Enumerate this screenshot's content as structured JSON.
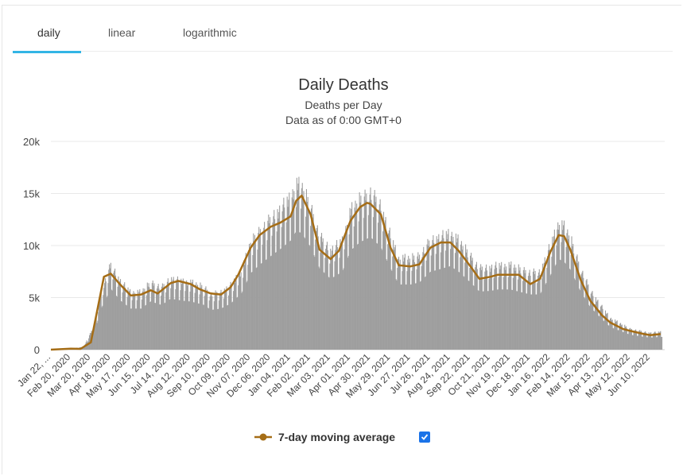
{
  "tabs": [
    {
      "label": "daily",
      "active": true
    },
    {
      "label": "linear",
      "active": false
    },
    {
      "label": "logarithmic",
      "active": false
    }
  ],
  "legend": {
    "label": "7-day moving average",
    "checked": true
  },
  "colors": {
    "accent": "#33b5e5",
    "bars": "#9e9e9e",
    "line": "#a56d16",
    "checkbox": "#1a73e8"
  },
  "chart_data": {
    "type": "bar",
    "title": "Daily Deaths",
    "subtitle": "Deaths per Day",
    "subtitle2": "Data as of 0:00 GMT+0",
    "xlabel": "",
    "ylabel": "",
    "ylim": [
      0,
      20000
    ],
    "y_ticks": [
      0,
      5000,
      10000,
      15000,
      20000
    ],
    "y_tick_labels": [
      "0",
      "5k",
      "10k",
      "15k",
      "20k"
    ],
    "x_tick_labels": [
      "Jan 22, ...",
      "Feb 20, 2020",
      "Mar 20, 2020",
      "Apr 18, 2020",
      "May 17, 2020",
      "Jun 15, 2020",
      "Jul 14, 2020",
      "Aug 12, 2020",
      "Sep 10, 2020",
      "Oct 09, 2020",
      "Nov 07, 2020",
      "Dec 06, 2020",
      "Jan 04, 2021",
      "Feb 02, 2021",
      "Mar 03, 2021",
      "Apr 01, 2021",
      "Apr 30, 2021",
      "May 29, 2021",
      "Jun 27, 2021",
      "Jul 26, 2021",
      "Aug 24, 2021",
      "Sep 22, 2021",
      "Oct 21, 2021",
      "Nov 19, 2021",
      "Dec 18, 2021",
      "Jan 16, 2022",
      "Feb 14, 2022",
      "Mar 15, 2022",
      "Apr 13, 2022",
      "May 12, 2022",
      "Jun 10, 2022"
    ],
    "grid": true,
    "legend_position": "bottom",
    "series": [
      {
        "name": "7-day moving average",
        "type": "line",
        "x": [
          "2020-01-22",
          "2020-02-20",
          "2020-03-05",
          "2020-03-20",
          "2020-03-30",
          "2020-04-08",
          "2020-04-18",
          "2020-05-01",
          "2020-05-17",
          "2020-06-01",
          "2020-06-15",
          "2020-06-25",
          "2020-07-14",
          "2020-07-25",
          "2020-08-12",
          "2020-08-25",
          "2020-09-10",
          "2020-09-25",
          "2020-10-09",
          "2020-10-20",
          "2020-11-07",
          "2020-11-20",
          "2020-12-06",
          "2020-12-20",
          "2021-01-04",
          "2021-01-12",
          "2021-01-20",
          "2021-02-02",
          "2021-02-15",
          "2021-03-03",
          "2021-03-15",
          "2021-04-01",
          "2021-04-15",
          "2021-04-25",
          "2021-04-30",
          "2021-05-15",
          "2021-05-29",
          "2021-06-10",
          "2021-06-27",
          "2021-07-10",
          "2021-07-26",
          "2021-08-10",
          "2021-08-24",
          "2021-09-05",
          "2021-09-22",
          "2021-10-05",
          "2021-10-21",
          "2021-11-01",
          "2021-11-19",
          "2021-12-01",
          "2021-12-18",
          "2022-01-01",
          "2022-01-16",
          "2022-01-28",
          "2022-02-05",
          "2022-02-14",
          "2022-03-01",
          "2022-03-15",
          "2022-04-01",
          "2022-04-13",
          "2022-05-01",
          "2022-05-12",
          "2022-06-01",
          "2022-06-10",
          "2022-06-25"
        ],
        "values": [
          0,
          100,
          80,
          700,
          4000,
          7000,
          7300,
          6300,
          5200,
          5300,
          5700,
          5400,
          6400,
          6600,
          6300,
          5800,
          5400,
          5300,
          6000,
          7200,
          9800,
          11000,
          11800,
          12200,
          12800,
          14300,
          14800,
          13000,
          9600,
          8700,
          9500,
          12400,
          13700,
          14100,
          14000,
          13000,
          9800,
          8100,
          8000,
          8200,
          9800,
          10300,
          10300,
          9500,
          8000,
          6800,
          7000,
          7200,
          7200,
          7200,
          6300,
          6800,
          9400,
          11000,
          10900,
          9600,
          6700,
          4700,
          3300,
          2600,
          2000,
          1800,
          1500,
          1400,
          1500
        ]
      },
      {
        "name": "daily",
        "type": "bar",
        "x": [
          "2020-01-22",
          "2020-02-20",
          "2020-03-10",
          "2020-03-25",
          "2020-04-05",
          "2020-04-18",
          "2020-05-01",
          "2020-05-17",
          "2020-06-01",
          "2020-06-15",
          "2020-07-01",
          "2020-07-14",
          "2020-08-01",
          "2020-08-12",
          "2020-09-01",
          "2020-09-10",
          "2020-09-25",
          "2020-10-09",
          "2020-10-25",
          "2020-11-07",
          "2020-11-20",
          "2020-12-06",
          "2020-12-20",
          "2021-01-04",
          "2021-01-12",
          "2021-01-20",
          "2021-02-02",
          "2021-02-15",
          "2021-03-03",
          "2021-03-20",
          "2021-04-01",
          "2021-04-15",
          "2021-04-30",
          "2021-05-15",
          "2021-05-29",
          "2021-06-10",
          "2021-06-27",
          "2021-07-10",
          "2021-07-26",
          "2021-08-10",
          "2021-08-24",
          "2021-09-05",
          "2021-09-22",
          "2021-10-05",
          "2021-10-21",
          "2021-11-01",
          "2021-11-19",
          "2021-12-01",
          "2021-12-18",
          "2022-01-01",
          "2022-01-16",
          "2022-01-28",
          "2022-02-05",
          "2022-02-14",
          "2022-03-01",
          "2022-03-15",
          "2022-04-01",
          "2022-04-13",
          "2022-05-01",
          "2022-05-12",
          "2022-06-01",
          "2022-06-10",
          "2022-06-25"
        ],
        "values": [
          0,
          100,
          300,
          2500,
          6000,
          8600,
          7000,
          5800,
          5800,
          6800,
          6300,
          7200,
          6900,
          6800,
          6300,
          5600,
          5800,
          6500,
          8000,
          10800,
          12000,
          13200,
          14200,
          15400,
          16700,
          16500,
          14500,
          11500,
          10000,
          11000,
          14000,
          15200,
          15900,
          14500,
          11500,
          9200,
          9200,
          9500,
          11000,
          11400,
          11800,
          11000,
          9500,
          8200,
          8300,
          8500,
          8500,
          8200,
          7800,
          7800,
          10500,
          12800,
          12400,
          11300,
          8200,
          6000,
          4300,
          3200,
          2500,
          2100,
          1800,
          1700,
          1800
        ]
      }
    ]
  }
}
